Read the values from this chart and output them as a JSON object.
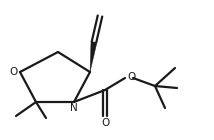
{
  "bg_color": "#ffffff",
  "line_color": "#1a1a1a",
  "lw": 1.6,
  "figsize": [
    2.14,
    1.4
  ],
  "dpi": 100,
  "xlim": [
    0,
    214
  ],
  "ylim": [
    0,
    140
  ]
}
